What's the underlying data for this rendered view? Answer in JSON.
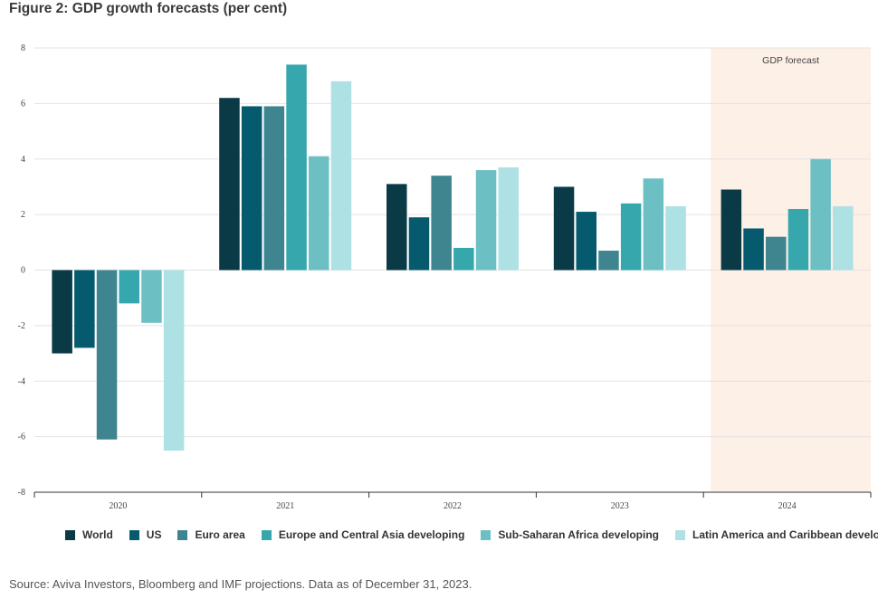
{
  "title": "Figure 2: GDP growth forecasts (per cent)",
  "source": "Source: Aviva Investors, Bloomberg and IMF projections. Data as of December 31, 2023.",
  "colors": {
    "background": "#ffffff",
    "forecast_band": "#fdf0e6",
    "grid": "#e3e3e3",
    "series": [
      "#0b3a47",
      "#055b6d",
      "#3f8590",
      "#36a8ad",
      "#6cc0c4",
      "#aee1e4"
    ]
  },
  "chart_data": {
    "type": "bar",
    "title": "Figure 2: GDP growth forecasts (per cent)",
    "xlabel": "",
    "ylabel": "",
    "ylim": [
      -8,
      8
    ],
    "yticks": [
      "8",
      "6",
      "4",
      "2",
      "0",
      "-2",
      "-4",
      "-6",
      "-8"
    ],
    "categories": [
      "2020",
      "2021",
      "2022",
      "2023",
      "2024"
    ],
    "grid": true,
    "legend_position": "bottom",
    "annotation": {
      "text": "GDP forecast",
      "category": "2024"
    },
    "series": [
      {
        "name": "World",
        "values": [
          -3.0,
          6.2,
          3.1,
          3.0,
          2.9
        ]
      },
      {
        "name": "US",
        "values": [
          -2.8,
          5.9,
          1.9,
          2.1,
          1.5
        ]
      },
      {
        "name": "Euro area",
        "values": [
          -6.1,
          5.9,
          3.4,
          0.7,
          1.2
        ]
      },
      {
        "name": "Europe and Central Asia developing",
        "values": [
          -1.2,
          7.4,
          0.8,
          2.4,
          2.2
        ]
      },
      {
        "name": "Sub-Saharan Africa developing",
        "values": [
          -1.9,
          4.1,
          3.6,
          3.3,
          4.0
        ]
      },
      {
        "name": "Latin America and Caribbean developing",
        "values": [
          -6.5,
          6.8,
          3.7,
          2.3,
          2.3
        ]
      }
    ]
  }
}
